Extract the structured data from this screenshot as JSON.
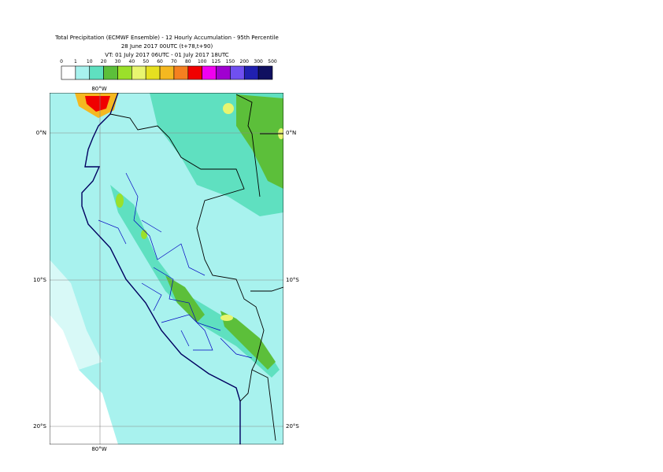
{
  "header": {
    "lines": [
      "Total Precipitation (ECMWF Ensemble) - 12 Hourly Accumulation - 95th Percentile",
      "28 June 2017 00UTC (t+78,t+90)",
      "VT: 01 July 2017 06UTC - 01 July 2017 18UTC"
    ]
  },
  "legend": {
    "labels": [
      0,
      1,
      10,
      20,
      30,
      40,
      50,
      60,
      70,
      80,
      100,
      125,
      150,
      200,
      300,
      500
    ],
    "colors": [
      "#ffffff",
      "#a8f2ee",
      "#5fe0c0",
      "#5cbf3a",
      "#9be02a",
      "#e8f570",
      "#e6e020",
      "#f5b820",
      "#f58020",
      "#f00000",
      "#f000f0",
      "#a000d0",
      "#7050f0",
      "#2020b0",
      "#101060"
    ]
  },
  "map": {
    "lon_labels": [
      "80°W"
    ],
    "lat_labels": [
      "0°N",
      "10°S",
      "20°S"
    ]
  }
}
